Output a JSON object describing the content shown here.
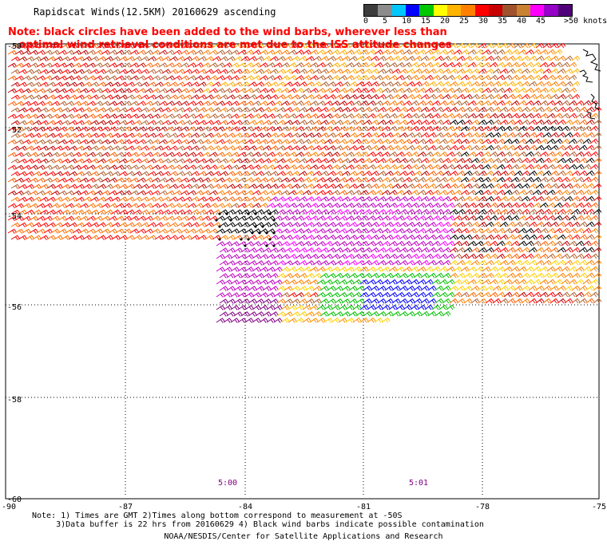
{
  "title": "Rapidscat Winds(12.5KM) 20160629 ascending",
  "note_line1": "Note: black circles have been added to the wind barbs, wherever less than",
  "note_line2": "   optimal wind retrieval conditions are met due to the ISS attitude changes",
  "colorbar": {
    "colors": [
      "#3c3c3c",
      "#8c8c8c",
      "#00c8ff",
      "#0000ff",
      "#00c800",
      "#ffff00",
      "#ffb400",
      "#ff8000",
      "#ff0000",
      "#c80000",
      "#a0522d",
      "#c88232",
      "#ff00ff",
      "#9600c8",
      "#500078"
    ],
    "labels": [
      "0",
      "5",
      "10",
      "15",
      "20",
      "25",
      "30",
      "35",
      "40",
      "45",
      ">50 knots"
    ]
  },
  "lat_labels": [
    "-50",
    "-52",
    "-54",
    "-56",
    "-58",
    "-60"
  ],
  "lon_labels": [
    "-90",
    "-87",
    "-84",
    "-81",
    "-78",
    "-75"
  ],
  "time_labels": [
    "5:00",
    "5:01"
  ],
  "footnote_line1": "Note: 1) Times are GMT 2)Times along bottom correspond to measurement at -50S",
  "footnote_line2": "     3)Data buffer is 22 hrs from 20160629 4) Black wind barbs indicate possible contamination",
  "credit": "NOAA/NESDIS/Center for Satellite Applications and Research"
}
